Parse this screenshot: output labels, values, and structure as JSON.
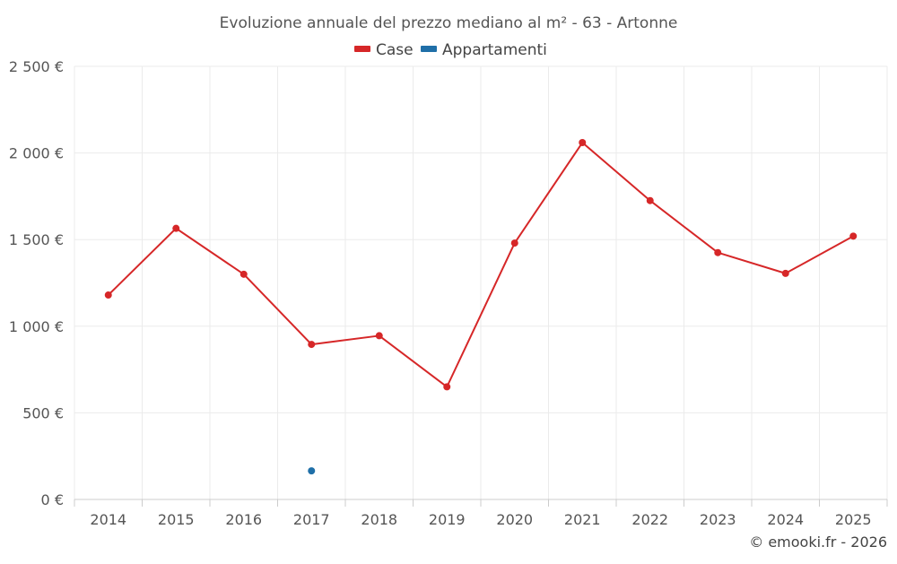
{
  "chart_data": {
    "type": "line",
    "title": "Evoluzione annuale del prezzo mediano al m² - 63 - Artonne",
    "categories": [
      "2014",
      "2015",
      "2016",
      "2017",
      "2018",
      "2019",
      "2020",
      "2021",
      "2022",
      "2023",
      "2024",
      "2025"
    ],
    "series": [
      {
        "name": "Case",
        "color": "#d62728",
        "values": [
          1180,
          1565,
          1300,
          895,
          945,
          650,
          1480,
          2060,
          1725,
          1425,
          1305,
          1520
        ]
      },
      {
        "name": "Appartamenti",
        "color": "#1f6fa8",
        "values": [
          null,
          null,
          null,
          165,
          null,
          null,
          null,
          null,
          null,
          null,
          null,
          null
        ]
      }
    ],
    "ylim": [
      0,
      2500
    ],
    "yticks": [
      0,
      500,
      1000,
      1500,
      2000,
      2500
    ],
    "ytick_labels": [
      "0 €",
      "500 €",
      "1 000 €",
      "1 500 €",
      "2 000 €",
      "2 500 €"
    ],
    "grid": true,
    "legend_position": "top-center",
    "xlabel": "",
    "ylabel": ""
  },
  "credit": "© emooki.fr - 2026"
}
